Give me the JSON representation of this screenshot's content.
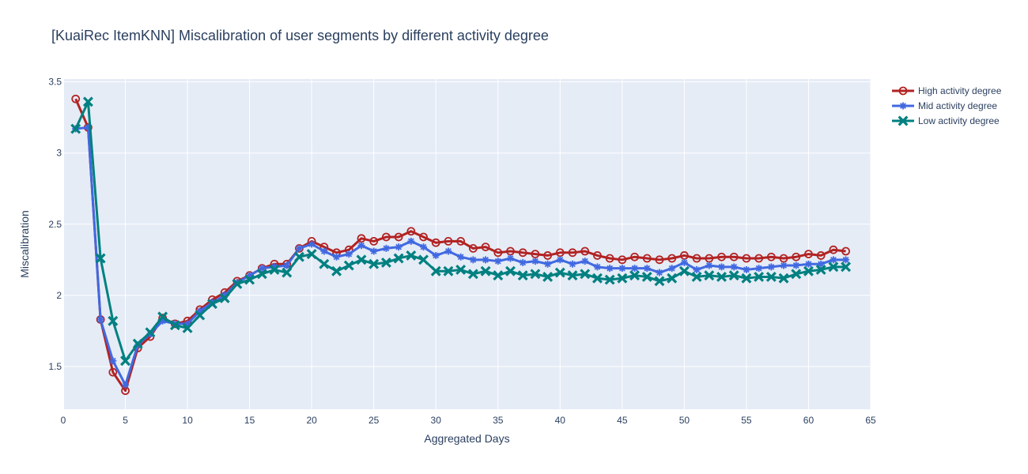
{
  "chart_data": {
    "type": "line",
    "title": "[KuaiRec ItemKNN] Miscalibration of user segments by different activity degree",
    "xlabel": "Aggregated Days",
    "ylabel": "Miscalibration",
    "xlim": [
      0,
      65
    ],
    "ylim": [
      1.2,
      3.52
    ],
    "xticks": [
      0,
      5,
      10,
      15,
      20,
      25,
      30,
      35,
      40,
      45,
      50,
      55,
      60,
      65
    ],
    "xtick_labels": [
      "0",
      "5",
      "10",
      "15",
      "20",
      "25",
      "30",
      "35",
      "40",
      "45",
      "50",
      "55",
      "60",
      "65"
    ],
    "yticks": [
      1.5,
      2,
      2.5,
      3,
      3.5
    ],
    "ytick_labels": [
      "1.5",
      "2",
      "2.5",
      "3",
      "3.5"
    ],
    "grid": true,
    "legend_position": "top-right",
    "background": "#e5ecf6",
    "x": [
      1,
      2,
      3,
      4,
      5,
      6,
      7,
      8,
      9,
      10,
      11,
      12,
      13,
      14,
      15,
      16,
      17,
      18,
      19,
      20,
      21,
      22,
      23,
      24,
      25,
      26,
      27,
      28,
      29,
      30,
      31,
      32,
      33,
      34,
      35,
      36,
      37,
      38,
      39,
      40,
      41,
      42,
      43,
      44,
      45,
      46,
      47,
      48,
      49,
      50,
      51,
      52,
      53,
      54,
      55,
      56,
      57,
      58,
      59,
      60,
      61,
      62,
      63
    ],
    "series": [
      {
        "name": "High activity degree",
        "color": "#b22222",
        "marker": "circle-open",
        "values": [
          3.38,
          3.18,
          1.83,
          1.46,
          1.33,
          1.63,
          1.71,
          1.84,
          1.8,
          1.82,
          1.9,
          1.97,
          2.02,
          2.1,
          2.14,
          2.19,
          2.22,
          2.22,
          2.33,
          2.38,
          2.34,
          2.3,
          2.32,
          2.4,
          2.38,
          2.41,
          2.41,
          2.45,
          2.41,
          2.37,
          2.38,
          2.38,
          2.33,
          2.34,
          2.3,
          2.31,
          2.3,
          2.29,
          2.28,
          2.3,
          2.3,
          2.31,
          2.28,
          2.26,
          2.25,
          2.27,
          2.26,
          2.25,
          2.26,
          2.28,
          2.26,
          2.26,
          2.27,
          2.27,
          2.26,
          2.26,
          2.27,
          2.26,
          2.27,
          2.29,
          2.28,
          2.32,
          2.31
        ]
      },
      {
        "name": "Mid activity degree",
        "color": "#4169e1",
        "marker": "asterisk",
        "values": [
          3.17,
          3.18,
          1.83,
          1.54,
          1.37,
          1.65,
          1.73,
          1.82,
          1.8,
          1.8,
          1.89,
          1.95,
          2.0,
          2.09,
          2.14,
          2.19,
          2.2,
          2.21,
          2.33,
          2.36,
          2.31,
          2.27,
          2.29,
          2.35,
          2.31,
          2.33,
          2.34,
          2.38,
          2.34,
          2.28,
          2.31,
          2.27,
          2.25,
          2.25,
          2.24,
          2.26,
          2.23,
          2.24,
          2.22,
          2.25,
          2.22,
          2.24,
          2.2,
          2.19,
          2.19,
          2.19,
          2.19,
          2.16,
          2.19,
          2.23,
          2.18,
          2.21,
          2.2,
          2.2,
          2.18,
          2.19,
          2.2,
          2.21,
          2.21,
          2.22,
          2.22,
          2.25,
          2.25
        ]
      },
      {
        "name": "Low activity degree",
        "color": "#008080",
        "marker": "x",
        "values": [
          3.17,
          3.36,
          2.26,
          1.82,
          1.54,
          1.66,
          1.74,
          1.85,
          1.79,
          1.77,
          1.86,
          1.94,
          1.98,
          2.08,
          2.11,
          2.15,
          2.18,
          2.16,
          2.27,
          2.29,
          2.22,
          2.17,
          2.21,
          2.25,
          2.22,
          2.23,
          2.26,
          2.28,
          2.25,
          2.17,
          2.17,
          2.18,
          2.15,
          2.17,
          2.14,
          2.17,
          2.14,
          2.15,
          2.13,
          2.16,
          2.14,
          2.15,
          2.12,
          2.11,
          2.12,
          2.14,
          2.13,
          2.1,
          2.12,
          2.17,
          2.13,
          2.14,
          2.13,
          2.14,
          2.12,
          2.13,
          2.13,
          2.12,
          2.15,
          2.17,
          2.18,
          2.2,
          2.2
        ]
      }
    ]
  }
}
